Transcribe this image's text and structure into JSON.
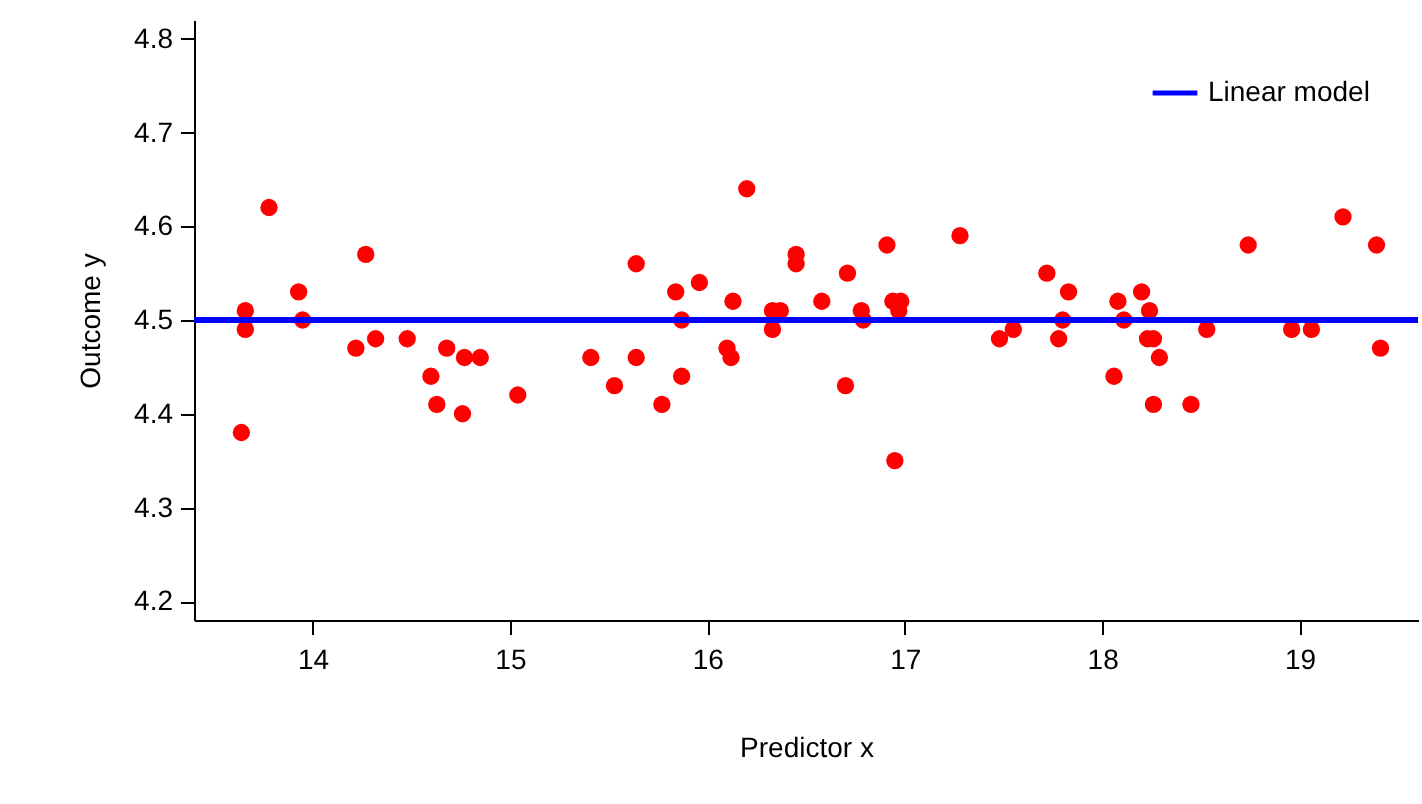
{
  "chart_data": {
    "type": "scatter",
    "xlabel": "Predictor x",
    "ylabel": "Outcome y",
    "xlim": [
      13.4,
      19.6
    ],
    "xticks": [
      14,
      15,
      16,
      17,
      18,
      19
    ],
    "ylim": [
      4.18,
      4.82
    ],
    "yticks": [
      4.2,
      4.3,
      4.4,
      4.5,
      4.6,
      4.7,
      4.8
    ],
    "grid": false,
    "legend": "top right",
    "series": [
      {
        "color": "#ff0000",
        "marker": "circle",
        "x": [
          13.64,
          13.66,
          13.66,
          13.78,
          13.93,
          13.95,
          14.22,
          14.27,
          14.32,
          14.48,
          14.6,
          14.63,
          14.68,
          14.76,
          14.77,
          14.85,
          15.04,
          15.41,
          15.53,
          15.64,
          15.64,
          15.77,
          15.84,
          15.87,
          15.87,
          15.96,
          16.1,
          16.12,
          16.13,
          16.2,
          16.33,
          16.33,
          16.37,
          16.45,
          16.45,
          16.58,
          16.71,
          16.7,
          16.78,
          16.79,
          16.91,
          16.94,
          16.95,
          16.97,
          16.98,
          17.28,
          17.48,
          17.55,
          17.72,
          17.78,
          17.8,
          17.83,
          18.06,
          18.08,
          18.11,
          18.2,
          18.23,
          18.26,
          18.24,
          18.26,
          18.29,
          18.45,
          18.53,
          18.74,
          18.96,
          19.06,
          19.22,
          19.39,
          19.41
        ],
        "values": [
          4.38,
          4.51,
          4.49,
          4.62,
          4.53,
          4.5,
          4.47,
          4.57,
          4.48,
          4.48,
          4.44,
          4.41,
          4.47,
          4.4,
          4.46,
          4.46,
          4.42,
          4.46,
          4.43,
          4.46,
          4.56,
          4.41,
          4.53,
          4.5,
          4.44,
          4.54,
          4.47,
          4.46,
          4.52,
          4.64,
          4.49,
          4.51,
          4.51,
          4.57,
          4.56,
          4.52,
          4.55,
          4.43,
          4.51,
          4.5,
          4.58,
          4.52,
          4.35,
          4.51,
          4.52,
          4.59,
          4.48,
          4.49,
          4.55,
          4.48,
          4.5,
          4.53,
          4.44,
          4.52,
          4.5,
          4.53,
          4.48,
          4.48,
          4.51,
          4.41,
          4.46,
          4.41,
          4.49,
          4.58,
          4.49,
          4.49,
          4.61,
          4.58,
          4.47
        ]
      },
      {
        "type": "line",
        "name": "Linear model",
        "color": "#0000ff",
        "line_style": "solid",
        "marker": "none",
        "x": [
          13.4,
          19.6
        ],
        "values": [
          4.5,
          4.5
        ]
      }
    ]
  }
}
